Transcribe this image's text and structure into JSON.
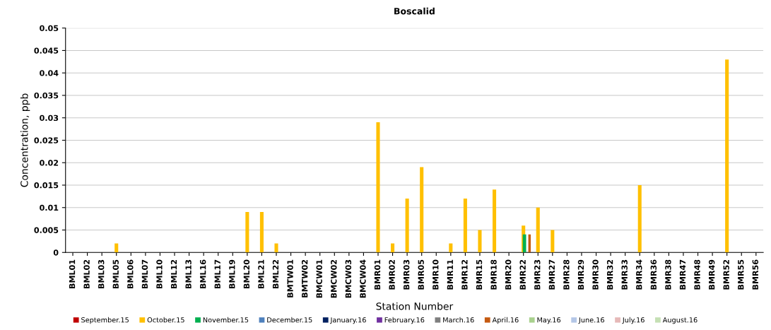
{
  "chart_data": {
    "type": "bar",
    "title": "Boscalid",
    "xlabel": "Station Number",
    "ylabel": "Concentration, ppb",
    "categories": [
      "BML01",
      "BML02",
      "BML03",
      "BML05",
      "BML06",
      "BML07",
      "BML10",
      "BML12",
      "BML13",
      "BML16",
      "BML17",
      "BML19",
      "BML20",
      "BML21",
      "BML22",
      "BMTW01",
      "BMTW02",
      "BMCW01",
      "BMCW02",
      "BMCW03",
      "BMCW04",
      "BMR01",
      "BMR02",
      "BMR03",
      "BMR05",
      "BMR10",
      "BMR11",
      "BMR12",
      "BMR15",
      "BMR18",
      "BMR20",
      "BMR22",
      "BMR23",
      "BMR27",
      "BMR28",
      "BMR29",
      "BMR30",
      "BMR32",
      "BMR33",
      "BMR34",
      "BMR36",
      "BMR38",
      "BMR47",
      "BMR48",
      "BMR49",
      "BMR52",
      "BMR55",
      "BMR56"
    ],
    "series": [
      {
        "name": "September.15",
        "color": "#c00000",
        "values": [
          null,
          null,
          null,
          null,
          null,
          null,
          null,
          null,
          null,
          null,
          null,
          null,
          null,
          null,
          null,
          null,
          null,
          null,
          null,
          null,
          null,
          null,
          null,
          null,
          null,
          null,
          null,
          null,
          null,
          null,
          null,
          null,
          null,
          null,
          null,
          null,
          null,
          null,
          null,
          null,
          null,
          null,
          null,
          null,
          null,
          null,
          null,
          null
        ]
      },
      {
        "name": "October.15",
        "color": "#ffc000",
        "values": [
          null,
          null,
          null,
          0.002,
          null,
          null,
          null,
          null,
          null,
          null,
          null,
          null,
          0.009,
          0.009,
          0.002,
          null,
          null,
          null,
          null,
          null,
          null,
          0.029,
          0.002,
          0.012,
          0.019,
          null,
          0.002,
          0.012,
          0.005,
          0.014,
          null,
          0.006,
          0.01,
          0.005,
          null,
          null,
          null,
          null,
          null,
          0.015,
          null,
          null,
          null,
          null,
          null,
          0.043,
          null,
          null
        ]
      },
      {
        "name": "November.15",
        "color": "#00b050",
        "values": [
          null,
          null,
          null,
          null,
          null,
          null,
          null,
          null,
          null,
          null,
          null,
          null,
          null,
          null,
          null,
          null,
          null,
          null,
          null,
          null,
          null,
          null,
          null,
          null,
          null,
          null,
          null,
          null,
          null,
          null,
          null,
          0.004,
          null,
          null,
          null,
          null,
          null,
          null,
          null,
          null,
          null,
          null,
          null,
          null,
          null,
          null,
          null,
          null
        ]
      },
      {
        "name": "December.15",
        "color": "#4f81bd",
        "values": [
          null,
          null,
          null,
          null,
          null,
          null,
          null,
          null,
          null,
          null,
          null,
          null,
          null,
          null,
          null,
          null,
          null,
          null,
          null,
          null,
          null,
          null,
          null,
          null,
          null,
          null,
          null,
          null,
          null,
          null,
          null,
          null,
          null,
          null,
          null,
          null,
          null,
          null,
          null,
          null,
          null,
          null,
          null,
          null,
          null,
          null,
          null,
          null
        ]
      },
      {
        "name": "January.16",
        "color": "#002060",
        "values": [
          null,
          null,
          null,
          null,
          null,
          null,
          null,
          null,
          null,
          null,
          null,
          null,
          null,
          null,
          null,
          null,
          null,
          null,
          null,
          null,
          null,
          null,
          null,
          null,
          null,
          null,
          null,
          null,
          null,
          null,
          null,
          null,
          null,
          null,
          null,
          null,
          null,
          null,
          null,
          null,
          null,
          null,
          null,
          null,
          null,
          null,
          null,
          null
        ]
      },
      {
        "name": "February.16",
        "color": "#7030a0",
        "values": [
          null,
          null,
          null,
          null,
          null,
          null,
          null,
          null,
          null,
          null,
          null,
          null,
          null,
          null,
          null,
          null,
          null,
          null,
          null,
          null,
          null,
          null,
          null,
          null,
          null,
          null,
          null,
          null,
          null,
          null,
          null,
          null,
          null,
          null,
          null,
          null,
          null,
          null,
          null,
          null,
          null,
          null,
          null,
          null,
          null,
          null,
          null,
          null
        ]
      },
      {
        "name": "March.16",
        "color": "#7f7f7f",
        "values": [
          null,
          null,
          null,
          null,
          null,
          null,
          null,
          null,
          null,
          null,
          null,
          null,
          null,
          null,
          null,
          null,
          null,
          null,
          null,
          null,
          null,
          null,
          null,
          null,
          null,
          null,
          null,
          null,
          null,
          null,
          null,
          null,
          null,
          null,
          null,
          null,
          null,
          null,
          null,
          null,
          null,
          null,
          null,
          null,
          null,
          null,
          null,
          null
        ]
      },
      {
        "name": "April.16",
        "color": "#c55a11",
        "values": [
          null,
          null,
          null,
          null,
          null,
          null,
          null,
          null,
          null,
          null,
          null,
          null,
          null,
          null,
          null,
          null,
          null,
          null,
          null,
          null,
          null,
          null,
          null,
          null,
          null,
          null,
          null,
          null,
          null,
          null,
          null,
          0.004,
          null,
          null,
          null,
          null,
          null,
          null,
          null,
          null,
          null,
          null,
          null,
          null,
          null,
          null,
          null,
          null
        ]
      },
      {
        "name": "May.16",
        "color": "#a9d18e",
        "values": [
          null,
          null,
          null,
          null,
          null,
          null,
          null,
          null,
          null,
          null,
          null,
          null,
          null,
          null,
          null,
          null,
          null,
          null,
          null,
          null,
          null,
          null,
          null,
          null,
          null,
          null,
          null,
          null,
          null,
          null,
          null,
          null,
          null,
          null,
          null,
          null,
          null,
          null,
          null,
          null,
          null,
          null,
          null,
          null,
          null,
          null,
          null,
          null
        ]
      },
      {
        "name": "June.16",
        "color": "#b4c7e7",
        "values": [
          null,
          null,
          null,
          null,
          null,
          null,
          null,
          null,
          null,
          null,
          null,
          null,
          null,
          null,
          null,
          null,
          null,
          null,
          null,
          null,
          null,
          null,
          null,
          null,
          null,
          null,
          null,
          null,
          null,
          null,
          null,
          null,
          null,
          null,
          null,
          null,
          null,
          null,
          null,
          null,
          null,
          null,
          null,
          null,
          null,
          null,
          null,
          null
        ]
      },
      {
        "name": "July.16",
        "color": "#e6b9b8",
        "values": [
          null,
          null,
          null,
          null,
          null,
          null,
          null,
          null,
          null,
          null,
          null,
          null,
          null,
          null,
          null,
          null,
          null,
          null,
          null,
          null,
          null,
          null,
          null,
          null,
          null,
          null,
          null,
          null,
          null,
          null,
          null,
          null,
          null,
          null,
          null,
          null,
          null,
          null,
          null,
          null,
          null,
          null,
          null,
          null,
          null,
          null,
          null,
          null
        ]
      },
      {
        "name": "August.16",
        "color": "#c5e0b4",
        "values": [
          null,
          null,
          null,
          null,
          null,
          null,
          null,
          null,
          null,
          null,
          null,
          null,
          null,
          null,
          null,
          null,
          null,
          null,
          null,
          null,
          null,
          null,
          null,
          null,
          null,
          null,
          null,
          null,
          null,
          null,
          null,
          null,
          null,
          null,
          null,
          null,
          null,
          null,
          null,
          null,
          null,
          null,
          null,
          null,
          null,
          null,
          null,
          null
        ]
      }
    ],
    "ylim": [
      0,
      0.05
    ],
    "yticks": [
      0,
      0.005,
      0.01,
      0.015,
      0.02,
      0.025,
      0.03,
      0.035,
      0.04,
      0.045,
      0.05
    ],
    "grid": "y",
    "legend": "bottom"
  }
}
